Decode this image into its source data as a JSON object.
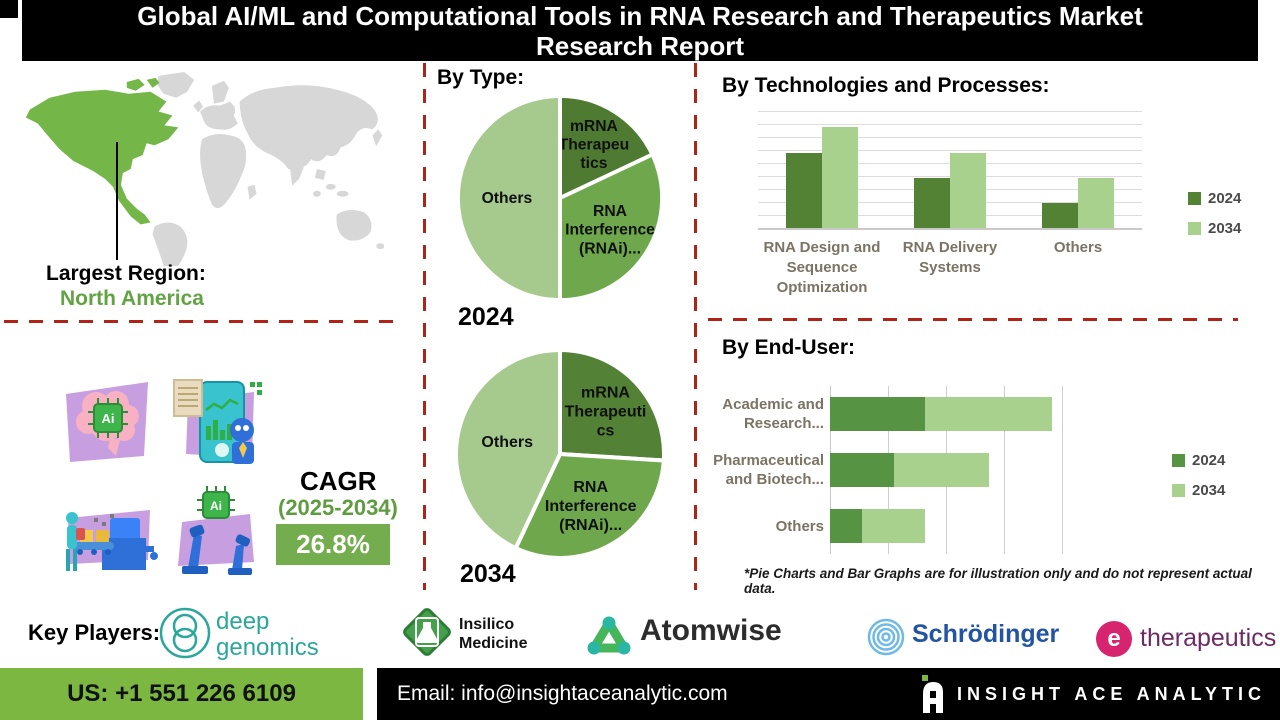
{
  "page_title": {
    "line1": "Global AI/ML and Computational Tools in RNA Research and Therapeutics Market",
    "line2": "Research Report"
  },
  "region": {
    "heading": "Largest Region:",
    "value": "North America"
  },
  "cagr": {
    "label": "CAGR",
    "period": "(2025-2034)",
    "value": "26.8%"
  },
  "sections": {
    "by_type": "By Type:",
    "by_tech": "By Technologies and Processes:",
    "by_end_user": "By End-User:"
  },
  "footnote": "*Pie Charts and Bar Graphs are for illustration only and do not represent actual data.",
  "key_players": {
    "heading": "Key Players:",
    "players": [
      {
        "name": "Deep Genomics",
        "line1": "deep",
        "line2": "genomics"
      },
      {
        "name": "Insilico Medicine",
        "line1": "Insilico",
        "line2": "Medicine"
      },
      {
        "name": "Atomwise",
        "line1": "Atomwise"
      },
      {
        "name": "Schrödinger",
        "line1": "Schrödinger"
      },
      {
        "name": "e-therapeutics",
        "line1": "e",
        "line2": "therapeutics"
      }
    ]
  },
  "contact": {
    "phone": "US: +1 551 226 6109",
    "email": "Email: info@insightaceanalytic.com",
    "brand": "INSIGHT ACE ANALYTIC"
  },
  "colors": {
    "accent_red": "#b02418",
    "map_green": "#74b648",
    "cagr_green": "#74ad4e",
    "phone_green": "#7cb742",
    "series_2024": "#548235",
    "series_2034": "#a9d18e"
  },
  "chart_data": [
    {
      "id": "pie-2024",
      "type": "pie",
      "year_label": "2024",
      "title": "By Type: 2024",
      "slices": [
        {
          "label": "mRNA Therapeutics",
          "lines": [
            "mRNA",
            "Therapeu",
            "tics"
          ],
          "value": 18,
          "color": "#4e7b31",
          "label_r": 0.62
        },
        {
          "label": "RNA Interference (RNAi)...",
          "lines": [
            "RNA",
            "Interference",
            "(RNAi)..."
          ],
          "value": 32,
          "color": "#6fa84c",
          "label_r": 0.58
        },
        {
          "label": "Others",
          "lines": [
            "Others"
          ],
          "value": 50,
          "color": "#a6c98e",
          "label_r": 0.52
        }
      ]
    },
    {
      "id": "pie-2034",
      "type": "pie",
      "year_label": "2034",
      "title": "By Type: 2034",
      "slices": [
        {
          "label": "mRNA Therapeutics",
          "lines": [
            "mRNA",
            "Therapeuti",
            "cs"
          ],
          "value": 26,
          "color": "#538135",
          "label_r": 0.6
        },
        {
          "label": "RNA Interference (RNAi)...",
          "lines": [
            "RNA",
            "Interference",
            "(RNAi)..."
          ],
          "value": 31,
          "color": "#6fa84c",
          "label_r": 0.58
        },
        {
          "label": "Others",
          "lines": [
            "Others"
          ],
          "value": 43,
          "color": "#a6c98e",
          "label_r": 0.52
        }
      ]
    },
    {
      "id": "tech",
      "type": "bar",
      "title": "By Technologies and Processes:",
      "categories": [
        "RNA Design and Sequence Optimization",
        "RNA Delivery Systems",
        "Others"
      ],
      "series": [
        {
          "name": "2024",
          "color": "#548235",
          "values": [
            64,
            43,
            21
          ]
        },
        {
          "name": "2034",
          "color": "#a9d18e",
          "values": [
            86,
            64,
            43
          ]
        }
      ],
      "ylim": [
        0,
        100
      ],
      "grid": true,
      "legend_position": "right"
    },
    {
      "id": "end-user",
      "type": "bar",
      "orientation": "horizontal",
      "stacked": true,
      "title": "By End-User:",
      "categories": [
        "Academic and Research...",
        "Pharmaceutical and Biotech...",
        "Others"
      ],
      "series": [
        {
          "name": "2024",
          "color": "#569444",
          "values": [
            30,
            20,
            10
          ]
        },
        {
          "name": "2034",
          "color": "#a9d18e",
          "values": [
            40,
            30,
            20
          ]
        }
      ],
      "xlim": [
        0,
        90
      ],
      "grid": true,
      "legend_position": "right"
    }
  ]
}
